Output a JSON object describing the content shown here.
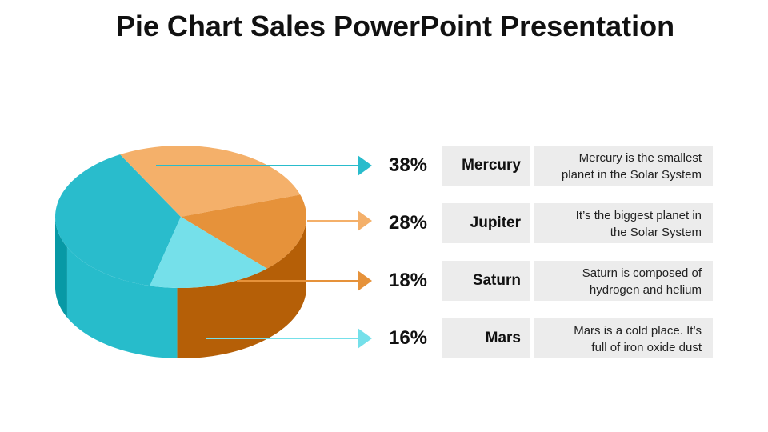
{
  "slide": {
    "title": "Pie Chart Sales PowerPoint Presentation"
  },
  "chart_data": {
    "type": "pie",
    "categories": [
      "Mercury",
      "Jupiter",
      "Saturn",
      "Mars"
    ],
    "values": [
      38,
      28,
      18,
      16
    ],
    "labels": [
      "38%",
      "28%",
      "18%",
      "16%"
    ],
    "descriptions": [
      [
        "Mercury is the smallest",
        "planet in the Solar System"
      ],
      [
        "It’s the biggest planet in",
        "the Solar System"
      ],
      [
        "Saturn is composed of",
        "hydrogen and helium"
      ],
      [
        "Mars is a cold place. It’s",
        "full of iron oxide dust"
      ]
    ],
    "colors": {
      "Mercury": "#29bccc",
      "Jupiter": "#f4b06a",
      "Saturn": "#e6923a",
      "Mars": "#75e0ea",
      "side_teal": "#27bccb",
      "side_teal_dark": "#0799a5",
      "side_orange": "#b55f07"
    }
  }
}
